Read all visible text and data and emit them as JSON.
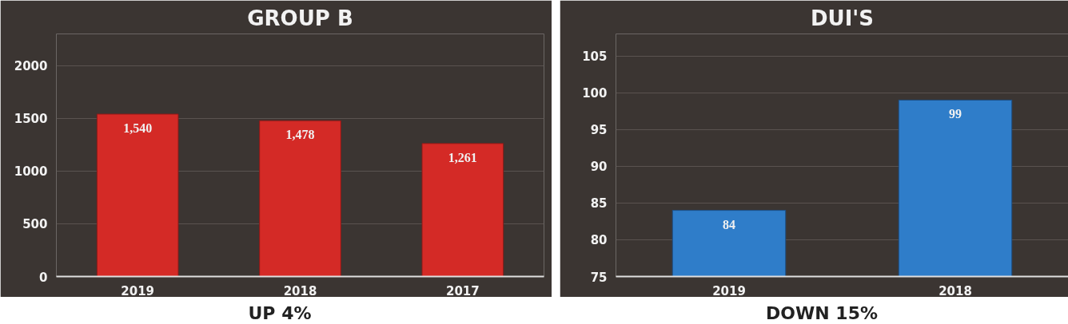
{
  "chart_data": [
    {
      "type": "bar",
      "title": "GROUP B",
      "categories": [
        "2019",
        "2018",
        "2017"
      ],
      "values": [
        1540,
        1478,
        1261
      ],
      "value_labels": [
        "1,540",
        "1,478",
        "1,261"
      ],
      "color": "#d42a26",
      "ylim": [
        0,
        2300
      ],
      "yticks": [
        0,
        500,
        1000,
        1500,
        2000
      ],
      "grid": "y",
      "annotations": [
        "UP 4%"
      ]
    },
    {
      "type": "bar",
      "title": "DUI'S",
      "categories": [
        "2019",
        "2018"
      ],
      "values": [
        84,
        99
      ],
      "data_labels": true,
      "color": "#2f7dc9",
      "ylim": [
        75,
        108
      ],
      "yticks": [
        75,
        80,
        85,
        90,
        95,
        100,
        105
      ],
      "grid": "y",
      "annotations": [
        "DOWN 15%"
      ]
    }
  ]
}
